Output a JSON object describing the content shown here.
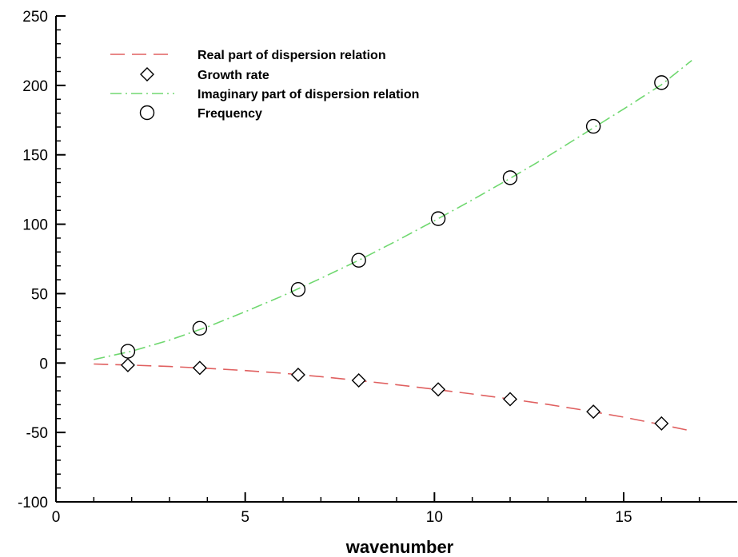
{
  "chart_data": {
    "type": "line",
    "title": "",
    "xlabel": "wavenumber",
    "ylabel": "",
    "xlim": [
      0,
      18
    ],
    "ylim": [
      -100,
      250
    ],
    "x_ticks": [
      0,
      5,
      10,
      15
    ],
    "y_ticks": [
      -100,
      -50,
      0,
      50,
      100,
      150,
      200,
      250
    ],
    "x_tick_labels": [
      "0",
      "5",
      "10",
      "15"
    ],
    "y_tick_labels": [
      "-100",
      "-50",
      "0",
      "50",
      "100",
      "150",
      "200",
      "250"
    ],
    "grid": false,
    "legend_position": "top-left",
    "series": [
      {
        "name": "Real part of dispersion relation",
        "kind": "line",
        "style": "dashed",
        "color": "#e06060",
        "x": [
          1,
          2,
          3,
          4,
          5,
          6,
          7,
          8,
          9,
          10,
          11,
          12,
          13,
          14,
          15,
          16,
          16.8
        ],
        "y": [
          -0.7,
          -1.5,
          -2.5,
          -3.8,
          -5.4,
          -7.4,
          -9.8,
          -12.6,
          -15.6,
          -18.9,
          -22.3,
          -25.9,
          -29.8,
          -34.2,
          -39.0,
          -44.4,
          -49.0
        ]
      },
      {
        "name": "Growth rate",
        "kind": "marker",
        "marker": "diamond",
        "color": "#000000",
        "x": [
          1.9,
          3.8,
          6.4,
          8.0,
          10.1,
          12.0,
          14.2,
          16.0
        ],
        "y": [
          -1.5,
          -3.5,
          -8.5,
          -12.5,
          -19,
          -26,
          -35,
          -43.5
        ]
      },
      {
        "name": "Imaginary part of dispersion relation",
        "kind": "line",
        "style": "dash-dot",
        "color": "#70d870",
        "x": [
          1,
          2,
          3,
          4,
          5,
          6,
          7,
          8,
          9,
          10,
          11,
          12,
          13,
          14,
          15,
          16,
          16.8
        ],
        "y": [
          2.5,
          8.5,
          16.5,
          26,
          37,
          48.5,
          61,
          74,
          88,
          102.5,
          117.5,
          133,
          149,
          166,
          183,
          200.5,
          218
        ]
      },
      {
        "name": "Frequency",
        "kind": "marker",
        "marker": "circle",
        "color": "#000000",
        "x": [
          1.9,
          3.8,
          6.4,
          8.0,
          10.1,
          12.0,
          14.2,
          16.0
        ],
        "y": [
          8.5,
          25,
          53,
          74,
          104,
          133.5,
          170.5,
          202
        ]
      }
    ]
  }
}
